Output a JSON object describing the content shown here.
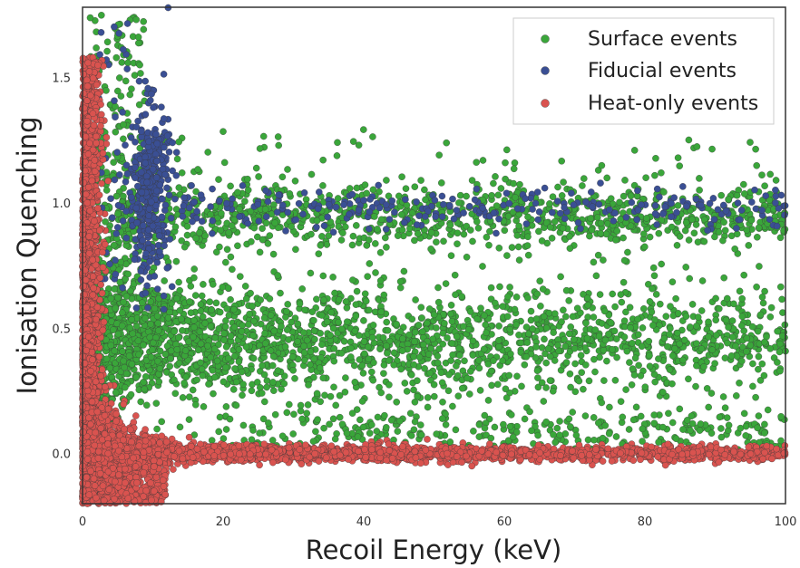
{
  "chart_data": {
    "type": "scatter",
    "xlabel": "Recoil Energy (keV)",
    "ylabel": "Ionisation Quenching",
    "xlim": [
      0,
      100
    ],
    "ylim": [
      -0.2,
      1.78
    ],
    "x_ticks": [
      "0",
      "20",
      "40",
      "60",
      "80",
      "100"
    ],
    "y_ticks": [
      "0.0",
      "0.5",
      "1.0",
      "1.5"
    ],
    "grid": false,
    "legend_position": "top-right",
    "series": [
      {
        "name": "Surface events",
        "color": "#3aa63a",
        "description_of_clusters": [
          {
            "label": "main band",
            "x_range": [
              2,
              100
            ],
            "y_center": 0.45,
            "y_spread": 0.1
          },
          {
            "label": "upper band",
            "x_range": [
              5,
              100
            ],
            "y_center": 0.95,
            "y_spread": 0.06
          },
          {
            "label": "low band",
            "x_range": [
              20,
              100
            ],
            "y_center": 0.1,
            "y_spread": 0.04
          }
        ]
      },
      {
        "name": "Fiducial events",
        "color": "#3a4f94",
        "description_of_clusters": [
          {
            "label": "low-energy plume",
            "x_range": [
              6,
              14
            ],
            "y_center": 1.05,
            "y_spread": 0.2
          },
          {
            "label": "nuclear band",
            "x_range": [
              14,
              100
            ],
            "y_center": 0.98,
            "y_spread": 0.05
          }
        ]
      },
      {
        "name": "Heat-only events",
        "color": "#d9534f",
        "description_of_clusters": [
          {
            "label": "zero band",
            "x_range": [
              0,
              100
            ],
            "y_center": 0.0,
            "y_spread": 0.015
          },
          {
            "label": "low-energy fan",
            "x_range": [
              0,
              12
            ],
            "y_center": 0.05,
            "y_spread": 0.15
          }
        ]
      }
    ]
  }
}
